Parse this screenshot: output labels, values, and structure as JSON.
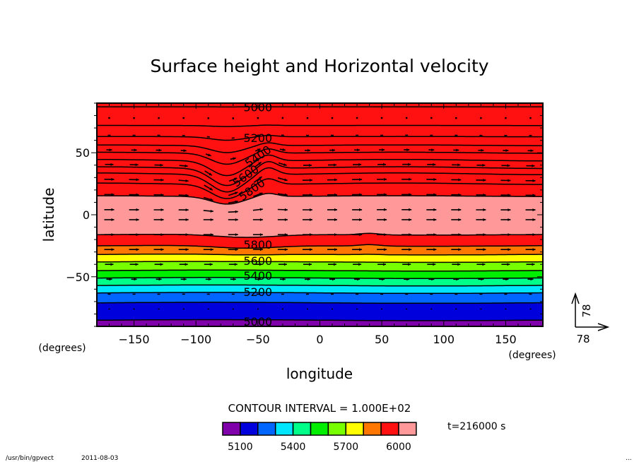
{
  "chart_data": {
    "type": "heatmap",
    "subtype": "filled-contour with vector overlay",
    "title": "Surface height and Horizontal velocity",
    "xlabel": "longitude",
    "ylabel": "latitude",
    "x_unit_label": "(degrees)",
    "y_unit_label": "(degrees)",
    "xlim": [
      -180,
      180
    ],
    "ylim": [
      -90,
      90
    ],
    "x_ticks": [
      -150,
      -100,
      -50,
      0,
      50,
      100,
      150
    ],
    "y_ticks": [
      50,
      0,
      -50
    ],
    "contour_interval_label": "CONTOUR INTERVAL = 1.000E+02",
    "contour_levels": [
      5000,
      5100,
      5200,
      5300,
      5400,
      5500,
      5600,
      5700,
      5800,
      5900
    ],
    "contour_labels": [
      {
        "text": "5000",
        "lon": -50,
        "lat": 87
      },
      {
        "text": "5200",
        "lon": -50,
        "lat": 62
      },
      {
        "text": "5400",
        "lon": -50,
        "lat": 47
      },
      {
        "text": "5600",
        "lon": -60,
        "lat": 36
      },
      {
        "text": "5800",
        "lon": -55,
        "lat": 22
      },
      {
        "text": "5800",
        "lon": -50,
        "lat": -24
      },
      {
        "text": "5600",
        "lon": -50,
        "lat": -37
      },
      {
        "text": "5400",
        "lon": -50,
        "lat": -49
      },
      {
        "text": "5200",
        "lon": -50,
        "lat": -62
      },
      {
        "text": "5000",
        "lon": -50,
        "lat": -86
      }
    ],
    "colorbar": {
      "colors": [
        "#7f00aa",
        "#0000dd",
        "#0066ff",
        "#00e6ff",
        "#00ff88",
        "#00ee00",
        "#77ff00",
        "#ffff00",
        "#ff7700",
        "#ff1111",
        "#ff9999"
      ],
      "tick_labels": [
        "5100",
        "5400",
        "5700",
        "6000"
      ],
      "tick_values": [
        5100,
        5400,
        5700,
        6000
      ]
    },
    "bands_north": [
      {
        "color": "#7f00aa",
        "lat_low": 87
      },
      {
        "color": "#0000dd",
        "lat_low": 72
      },
      {
        "color": "#0066ff",
        "lat_low": 63
      },
      {
        "color": "#00e6ff",
        "lat_low": 56
      },
      {
        "color": "#00ff88",
        "lat_low": 50
      },
      {
        "color": "#00ee00",
        "lat_low": 44
      },
      {
        "color": "#77ff00",
        "lat_low": 38
      },
      {
        "color": "#ffff00",
        "lat_low": 33
      },
      {
        "color": "#ff7700",
        "lat_low": 25
      },
      {
        "color": "#ff1111",
        "lat_low": 15
      }
    ],
    "bands_south": [
      {
        "color": "#ff1111",
        "lat_high": -16
      },
      {
        "color": "#ff7700",
        "lat_high": -25
      },
      {
        "color": "#ffff00",
        "lat_high": -32
      },
      {
        "color": "#77ff00",
        "lat_high": -38
      },
      {
        "color": "#00ee00",
        "lat_high": -45
      },
      {
        "color": "#00ff88",
        "lat_high": -51
      },
      {
        "color": "#00e6ff",
        "lat_high": -57
      },
      {
        "color": "#0066ff",
        "lat_high": -63
      },
      {
        "color": "#0000dd",
        "lat_high": -71
      },
      {
        "color": "#7f00aa",
        "lat_high": -85
      }
    ],
    "center_band_color": "#ff9999",
    "north_disturbance": {
      "trough_lon": -75,
      "trough_depth_deg": 14,
      "ridge_lon": -42,
      "ridge_height_deg": 6
    },
    "vector_reference": {
      "u": 78,
      "v": 78,
      "u_label": "78",
      "v_label": "78"
    },
    "vector_field": {
      "lon_spacing_deg": 20,
      "rows": [
        {
          "lat": 78,
          "u": 0
        },
        {
          "lat": 64,
          "u": 4
        },
        {
          "lat": 52,
          "u": 8
        },
        {
          "lat": 40,
          "u": 12
        },
        {
          "lat": 28,
          "u": 14
        },
        {
          "lat": 16,
          "u": 14
        },
        {
          "lat": 4,
          "u": 14
        },
        {
          "lat": -4,
          "u": 14
        },
        {
          "lat": -16,
          "u": 14
        },
        {
          "lat": -28,
          "u": 14
        },
        {
          "lat": -40,
          "u": 12
        },
        {
          "lat": -52,
          "u": 8
        },
        {
          "lat": -64,
          "u": 4
        },
        {
          "lat": -76,
          "u": 2
        }
      ]
    },
    "time_label": "t=216000 s"
  },
  "footer": {
    "program": "/usr/bin/gpvect",
    "date": "2011-08-03",
    "page_mark": "..."
  }
}
